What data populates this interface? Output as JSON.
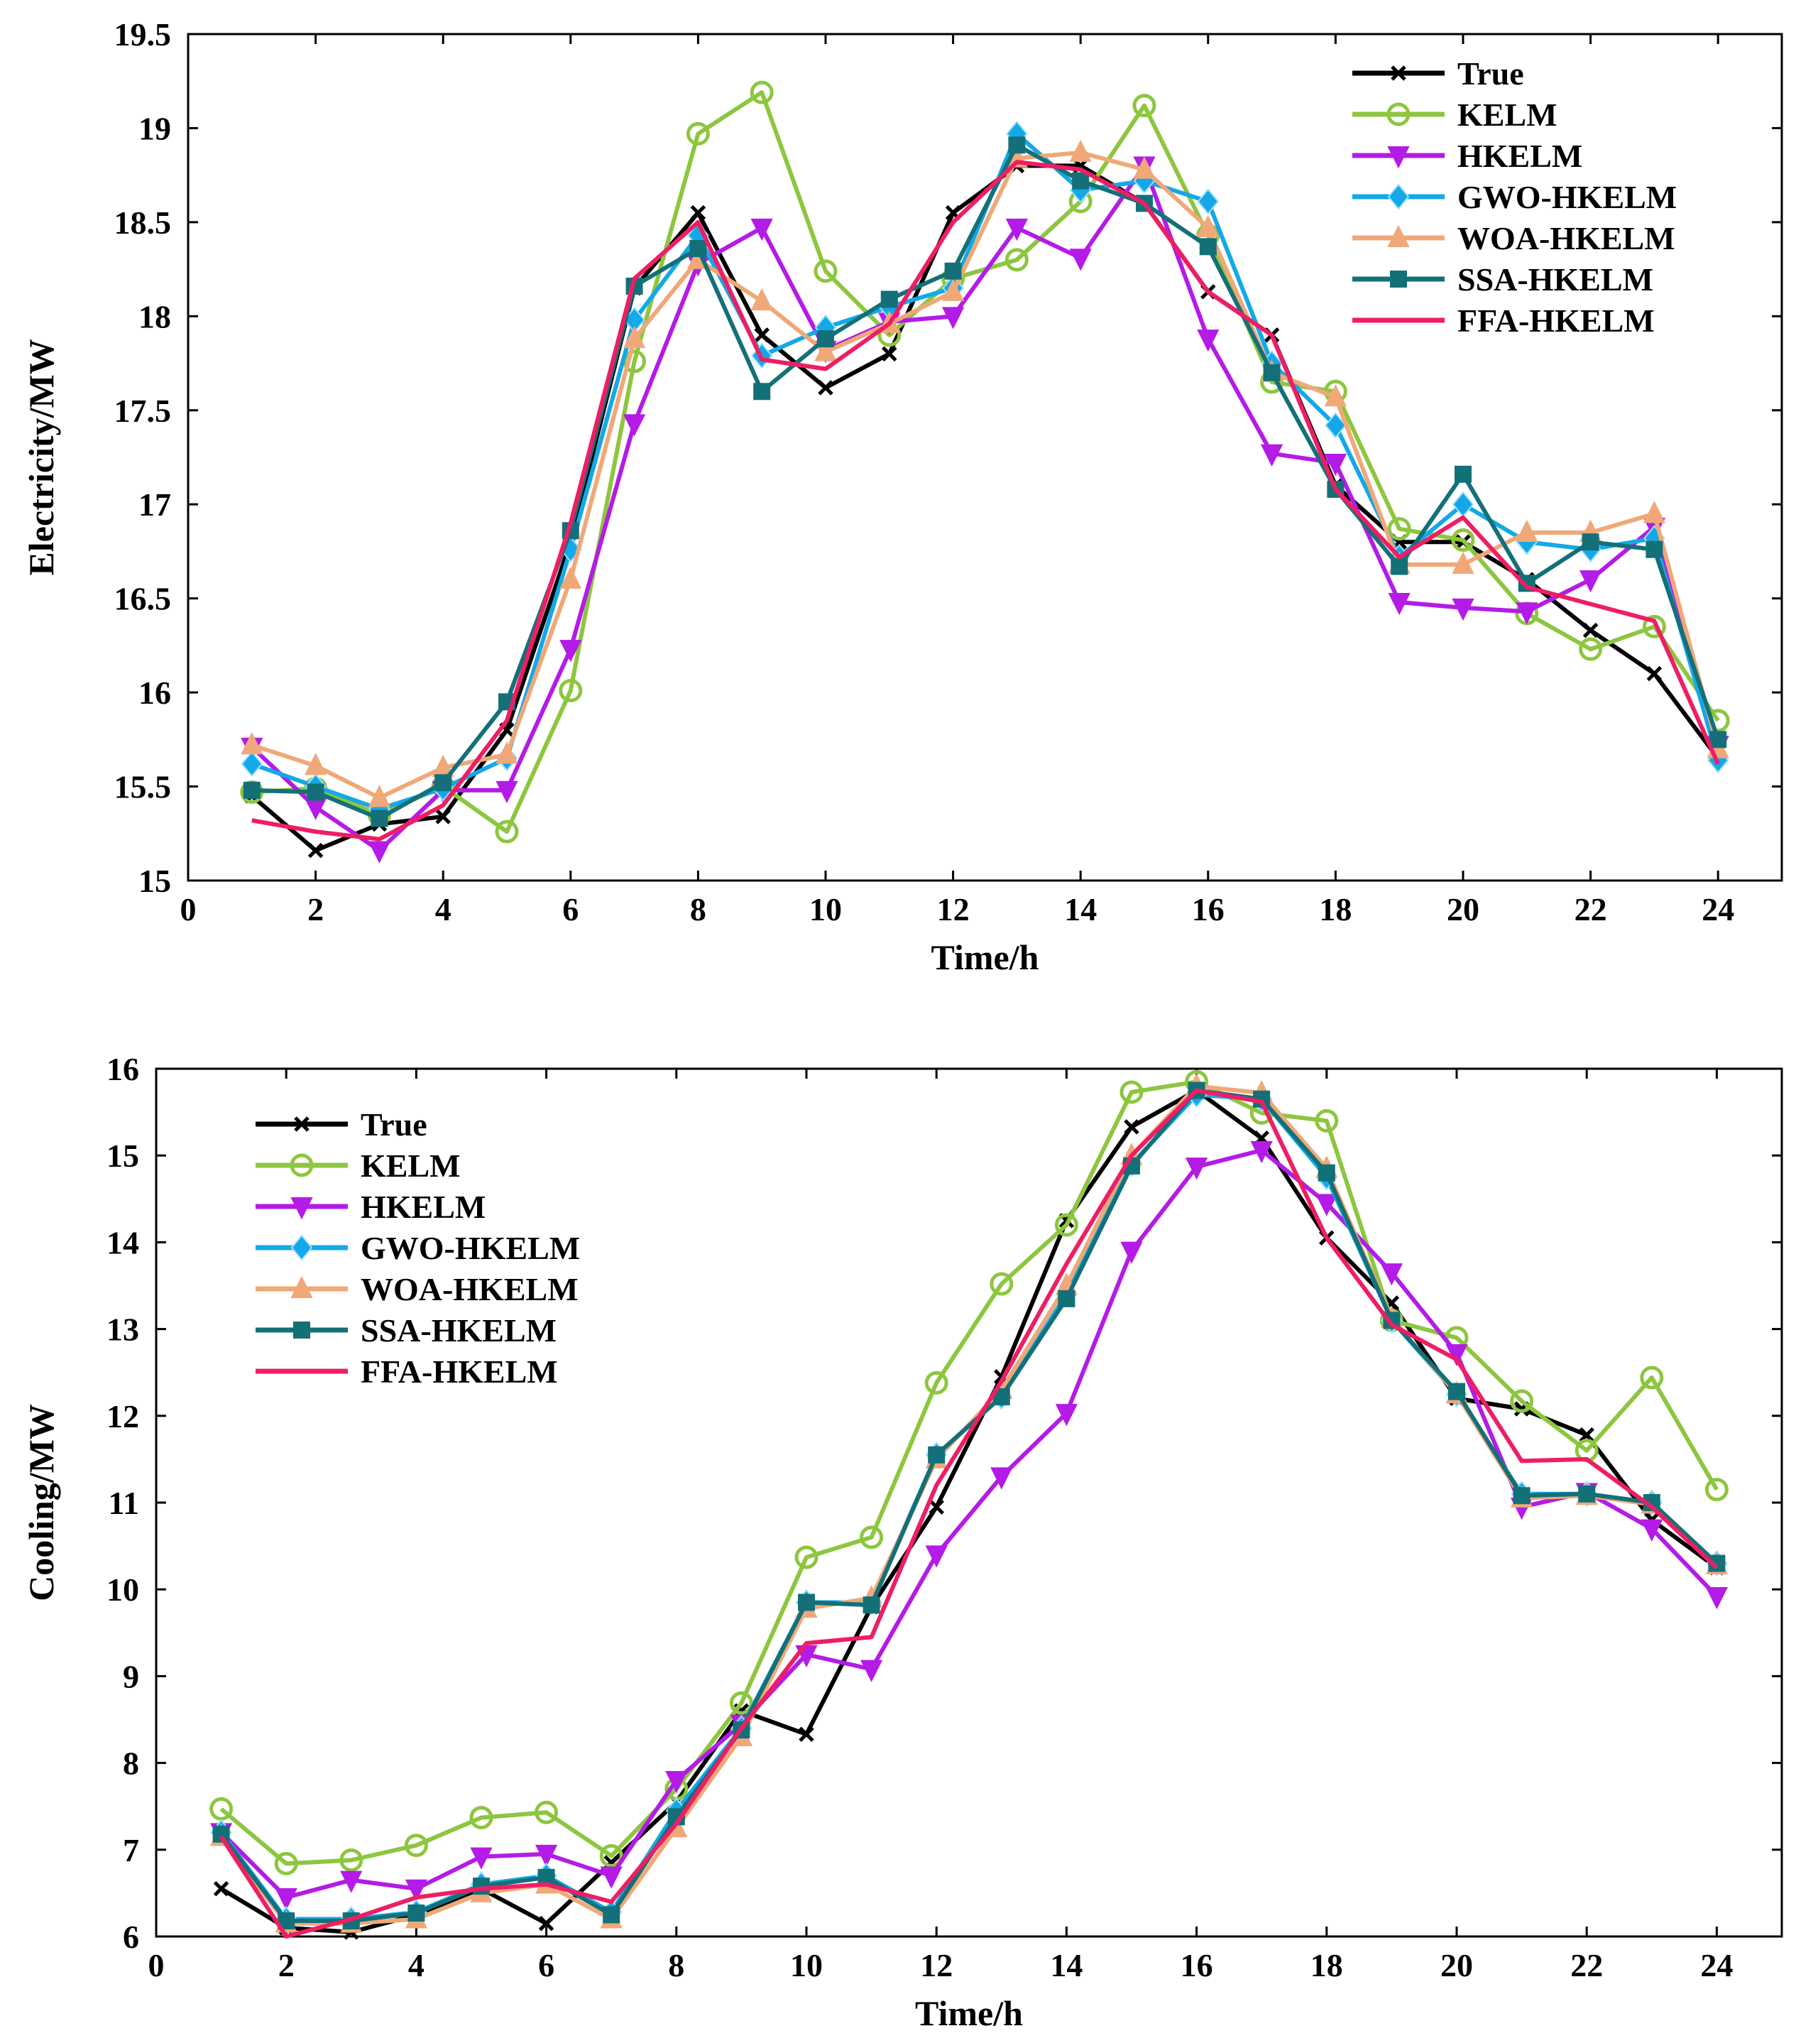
{
  "colors": {
    "True": "#000000",
    "KELM": "#8dc63f",
    "HKELM": "#b41be6",
    "GWO-HKELM": "#14a8e8",
    "WOA-HKELM": "#f0a878",
    "SSA-HKELM": "#137078",
    "FFA-HKELM": "#ee1e64"
  },
  "markers": {
    "True": "x",
    "KELM": "circle",
    "HKELM": "triangle-down",
    "GWO-HKELM": "diamond",
    "WOA-HKELM": "triangle-up",
    "SSA-HKELM": "square",
    "FFA-HKELM": "none"
  },
  "chart_data": [
    {
      "type": "line",
      "title": "",
      "xlabel": "Time/h",
      "ylabel": "Electricity/MW",
      "xlim": [
        0,
        25
      ],
      "ylim": [
        15,
        19.5
      ],
      "xticks": [
        0,
        2,
        4,
        6,
        8,
        10,
        12,
        14,
        16,
        18,
        20,
        22,
        24
      ],
      "yticks": [
        15,
        15.5,
        16,
        16.5,
        17,
        17.5,
        18,
        18.5,
        19,
        19.5
      ],
      "ytick_labels": [
        "15",
        "15.5",
        "16",
        "16.5",
        "17",
        "17.5",
        "18",
        "18.5",
        "19",
        "19.5"
      ],
      "legend_position": "top-right",
      "x": [
        1,
        2,
        3,
        4,
        5,
        6,
        7,
        8,
        9,
        10,
        11,
        12,
        13,
        14,
        15,
        16,
        17,
        18,
        19,
        20,
        21,
        22,
        23,
        24
      ],
      "series": [
        {
          "name": "True",
          "values": [
            15.45,
            15.16,
            15.3,
            15.34,
            15.8,
            16.8,
            18.15,
            18.55,
            17.9,
            17.62,
            17.8,
            18.55,
            18.8,
            18.8,
            18.6,
            18.13,
            17.9,
            17.1,
            16.8,
            16.8,
            16.6,
            16.33,
            16.1,
            15.65
          ]
        },
        {
          "name": "KELM",
          "values": [
            15.47,
            15.49,
            15.35,
            15.5,
            15.26,
            16.01,
            17.76,
            18.97,
            19.19,
            18.24,
            17.9,
            18.2,
            18.3,
            18.61,
            19.12,
            18.43,
            17.65,
            17.6,
            16.87,
            16.81,
            16.42,
            16.23,
            16.35,
            15.85
          ]
        },
        {
          "name": "HKELM",
          "values": [
            15.71,
            15.39,
            15.16,
            15.48,
            15.48,
            16.23,
            17.43,
            18.28,
            18.47,
            17.82,
            17.97,
            18.0,
            18.47,
            18.31,
            18.8,
            17.88,
            17.27,
            17.22,
            16.48,
            16.45,
            16.43,
            16.6,
            16.88,
            15.72
          ]
        },
        {
          "name": "GWO-HKELM",
          "values": [
            15.62,
            15.5,
            15.38,
            15.49,
            15.65,
            16.76,
            17.98,
            18.43,
            17.79,
            17.94,
            18.05,
            18.15,
            18.97,
            18.67,
            18.72,
            18.61,
            17.75,
            17.42,
            16.72,
            17.0,
            16.8,
            16.76,
            16.82,
            15.64
          ]
        },
        {
          "name": "WOA-HKELM",
          "values": [
            15.72,
            15.61,
            15.44,
            15.6,
            15.67,
            16.6,
            17.88,
            18.3,
            18.08,
            17.81,
            17.96,
            18.13,
            18.84,
            18.87,
            18.78,
            18.47,
            17.7,
            17.57,
            16.68,
            16.68,
            16.85,
            16.85,
            16.95,
            15.7
          ]
        },
        {
          "name": "SSA-HKELM",
          "values": [
            15.48,
            15.47,
            15.33,
            15.52,
            15.95,
            16.86,
            18.16,
            18.36,
            17.6,
            17.88,
            18.09,
            18.24,
            18.91,
            18.72,
            18.6,
            18.37,
            17.7,
            17.08,
            16.67,
            17.16,
            16.58,
            16.8,
            16.76,
            15.75
          ]
        },
        {
          "name": "FFA-HKELM",
          "values": [
            15.32,
            15.26,
            15.22,
            15.4,
            15.85,
            16.9,
            18.2,
            18.5,
            17.77,
            17.72,
            17.96,
            18.5,
            18.82,
            18.78,
            18.6,
            18.13,
            17.9,
            17.08,
            16.72,
            16.93,
            16.56,
            16.47,
            16.38,
            15.62
          ]
        }
      ]
    },
    {
      "type": "line",
      "title": "",
      "xlabel": "Time/h",
      "ylabel": "Cooling/MW",
      "xlim": [
        0,
        25
      ],
      "ylim": [
        6,
        16
      ],
      "xticks": [
        0,
        2,
        4,
        6,
        8,
        10,
        12,
        14,
        16,
        18,
        20,
        22,
        24
      ],
      "yticks": [
        6,
        7,
        8,
        9,
        10,
        11,
        12,
        13,
        14,
        15,
        16
      ],
      "ytick_labels": [
        "6",
        "7",
        "8",
        "9",
        "10",
        "11",
        "12",
        "13",
        "14",
        "15",
        "16"
      ],
      "legend_position": "top-left",
      "x": [
        1,
        2,
        3,
        4,
        5,
        6,
        7,
        8,
        9,
        10,
        11,
        12,
        13,
        14,
        15,
        16,
        17,
        18,
        19,
        20,
        21,
        22,
        23,
        24
      ],
      "series": [
        {
          "name": "True",
          "values": [
            6.55,
            6.1,
            6.05,
            6.25,
            6.55,
            6.15,
            6.85,
            7.55,
            8.6,
            8.33,
            9.8,
            10.95,
            12.45,
            14.25,
            15.33,
            15.75,
            15.2,
            14.05,
            13.3,
            12.2,
            12.08,
            11.78,
            10.8,
            10.25
          ]
        },
        {
          "name": "KELM",
          "values": [
            7.47,
            6.84,
            6.88,
            7.05,
            7.37,
            7.43,
            6.93,
            7.7,
            8.69,
            10.37,
            10.6,
            12.38,
            13.52,
            14.2,
            15.73,
            15.85,
            15.49,
            15.4,
            13.1,
            12.9,
            12.17,
            11.6,
            12.44,
            11.15
          ]
        },
        {
          "name": "HKELM",
          "values": [
            7.2,
            6.45,
            6.65,
            6.55,
            6.92,
            6.95,
            6.7,
            7.8,
            8.45,
            9.25,
            9.08,
            10.4,
            11.3,
            12.03,
            13.9,
            14.87,
            15.06,
            14.45,
            13.65,
            12.72,
            10.95,
            11.12,
            10.7,
            9.92
          ]
        },
        {
          "name": "GWO-HKELM",
          "values": [
            7.2,
            6.2,
            6.2,
            6.28,
            6.6,
            6.7,
            6.28,
            7.45,
            8.4,
            9.85,
            9.85,
            11.55,
            12.22,
            13.4,
            14.9,
            15.7,
            15.65,
            14.75,
            13.1,
            12.25,
            11.1,
            11.1,
            11.0,
            10.3
          ]
        },
        {
          "name": "WOA-HKELM",
          "values": [
            7.15,
            6.15,
            6.15,
            6.2,
            6.5,
            6.6,
            6.2,
            7.25,
            8.3,
            9.78,
            9.9,
            11.5,
            12.3,
            13.5,
            15.0,
            15.8,
            15.72,
            14.85,
            13.12,
            12.25,
            11.05,
            11.08,
            10.98,
            10.28
          ]
        },
        {
          "name": "SSA-HKELM",
          "values": [
            7.18,
            6.18,
            6.18,
            6.27,
            6.58,
            6.68,
            6.25,
            7.38,
            8.38,
            9.85,
            9.82,
            11.55,
            12.22,
            13.35,
            14.88,
            15.75,
            15.65,
            14.8,
            13.1,
            12.28,
            11.08,
            11.1,
            11.0,
            10.3
          ]
        },
        {
          "name": "FFA-HKELM",
          "values": [
            7.15,
            6.0,
            6.2,
            6.45,
            6.55,
            6.6,
            6.4,
            7.3,
            8.4,
            9.38,
            9.45,
            11.2,
            12.4,
            13.75,
            15.0,
            15.75,
            15.62,
            14.05,
            13.05,
            12.65,
            11.48,
            11.5,
            10.95,
            10.25
          ]
        }
      ]
    }
  ]
}
